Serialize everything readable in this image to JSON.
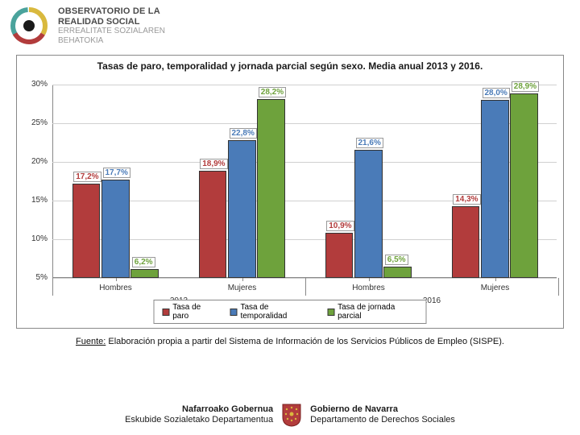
{
  "header": {
    "logo": {
      "line1": "OBSERVATORIO DE LA",
      "line2": "REALIDAD SOCIAL",
      "line3": "ERREALITATE SOZIALAREN",
      "line4": "BEHATOKIA",
      "ring_colors": {
        "teal": "#4aa39c",
        "yellow": "#d9b93e",
        "red": "#b23c3c",
        "center": "#1a1a1a"
      }
    }
  },
  "chart": {
    "type": "bar",
    "title": "Tasas de paro, temporalidad y jornada parcial según sexo. Media anual 2013 y 2016.",
    "y": {
      "min": 5,
      "max": 30,
      "step": 5,
      "labels": [
        "30%",
        "25%",
        "20%",
        "15%",
        "10%",
        "5%"
      ]
    },
    "groups": [
      {
        "year": "2013",
        "label": "Hombres",
        "values": [
          17.2,
          17.7,
          6.2
        ],
        "label_fmt": [
          "17,2%",
          "17,7%",
          "6,2%"
        ]
      },
      {
        "year": "2013",
        "label": "Mujeres",
        "values": [
          18.9,
          22.8,
          28.2
        ],
        "label_fmt": [
          "18,9%",
          "22,8%",
          "28,2%"
        ]
      },
      {
        "year": "2016",
        "label": "Hombres",
        "values": [
          10.9,
          21.6,
          6.5
        ],
        "label_fmt": [
          "10,9%",
          "21,6%",
          "6,5%"
        ]
      },
      {
        "year": "2016",
        "label": "Mujeres",
        "values": [
          14.3,
          28.0,
          28.9
        ],
        "label_fmt": [
          "14,3%",
          "28,0%",
          "28,9%"
        ]
      }
    ],
    "series": [
      {
        "name": "Tasa de paro",
        "color": "#b23c3c"
      },
      {
        "name": "Tasa de temporalidad",
        "color": "#4a7bb8"
      },
      {
        "name": "Tasa de jornada parcial",
        "color": "#6ea23c"
      }
    ],
    "value_label_colors": [
      "#b23c3c",
      "#4a7bb8",
      "#6ea23c"
    ],
    "year_labels": [
      "2013",
      "2016"
    ],
    "background_color": "#ffffff",
    "grid_color": "#d0d0d0",
    "axis_color": "#888888",
    "bar_border": "#333333",
    "title_fontsize": 12,
    "label_fontsize": 10
  },
  "source": {
    "underline": "Fuente:",
    "text": " Elaboración propia a partir del Sistema de Información de los Servicios Públicos de Empleo (SISPE)."
  },
  "footer": {
    "basque_bold": "Nafarroako Gobernua",
    "basque_plain": "Eskubide Sozialetako Departamentua",
    "spanish_bold": "Gobierno de Navarra",
    "spanish_plain": "Departamento de Derechos Sociales",
    "shield_red": "#b23c3c"
  }
}
